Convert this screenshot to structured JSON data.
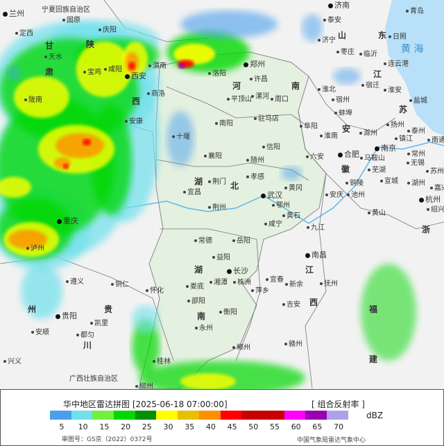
{
  "legend": {
    "title": "华中地区雷达拼图 [2025-06-18 07:00:00]",
    "product": "[ 组合反射率 ]",
    "unit": "dBZ",
    "ticks": [
      "5",
      "10",
      "15",
      "20",
      "25",
      "30",
      "35",
      "40",
      "45",
      "50",
      "55",
      "60",
      "65",
      "70"
    ],
    "colors": [
      "#4a9fec",
      "#6fe0ec",
      "#70f040",
      "#00d800",
      "#009000",
      "#ffff00",
      "#e8c000",
      "#ff9000",
      "#ff0000",
      "#c80000",
      "#c80000",
      "#ff00ff",
      "#9900b0",
      "#b0a0e8"
    ],
    "approval": "审图号：GS京（2022）0372号",
    "source": "中国气象局雷达气象中心"
  },
  "map": {
    "sea_label": "黄 海",
    "provinces": [
      "河",
      "南",
      "湖",
      "北",
      "湖",
      "南",
      "江",
      "西",
      "安",
      "徽",
      "江",
      "苏",
      "山",
      "东",
      "陕",
      "西",
      "甘",
      "肃",
      "川",
      "贵",
      "州",
      "浙",
      "福",
      "建",
      "宁夏回族自治区",
      "广西壮族自治区"
    ],
    "cities": [
      "郑州",
      "洛阳",
      "许昌",
      "平顶山",
      "漯河",
      "周口",
      "南阳",
      "驻马店",
      "十堰",
      "信阳",
      "襄阳",
      "随州",
      "孝感",
      "荆门",
      "武汉",
      "黄冈",
      "鄂州",
      "黄石",
      "宜昌",
      "荆州",
      "咸宁",
      "九江",
      "岳阳",
      "常德",
      "益阳",
      "长沙",
      "湘潭",
      "株洲",
      "宜春",
      "新余",
      "萍乡",
      "南昌",
      "抚州",
      "吉安",
      "娄底",
      "邵阳",
      "衡阳",
      "永州",
      "郴州",
      "赣州",
      "济南",
      "青岛",
      "泰安",
      "济宁",
      "日照",
      "枣庄",
      "临沂",
      "连云港",
      "宿迁",
      "淮北",
      "宿州",
      "淮安",
      "盐城",
      "蚌埠",
      "阜阳",
      "淮南",
      "滁州",
      "扬州",
      "泰州",
      "南通",
      "合肥",
      "南京",
      "镇江",
      "常州",
      "六安",
      "马鞍山",
      "芜湖",
      "无锡",
      "苏州",
      "宣城",
      "湖州",
      "铜陵",
      "嘉兴",
      "安庆",
      "池州",
      "杭州",
      "绍兴",
      "黄山",
      "兰州",
      "固原",
      "庆阳",
      "定西",
      "天水",
      "宝鸡",
      "咸阳",
      "西安",
      "渭南",
      "商洛",
      "陇南",
      "安康",
      "重庆",
      "泸州",
      "遵义",
      "铜仁",
      "怀化",
      "贵阳",
      "安顺",
      "凯里",
      "都匀",
      "兴义",
      "桂林",
      "柳州"
    ],
    "capitals": [
      "郑州",
      "武汉",
      "长沙",
      "南昌",
      "合肥",
      "南京",
      "杭州",
      "西安",
      "重庆",
      "贵阳",
      "兰州",
      "济南"
    ]
  }
}
